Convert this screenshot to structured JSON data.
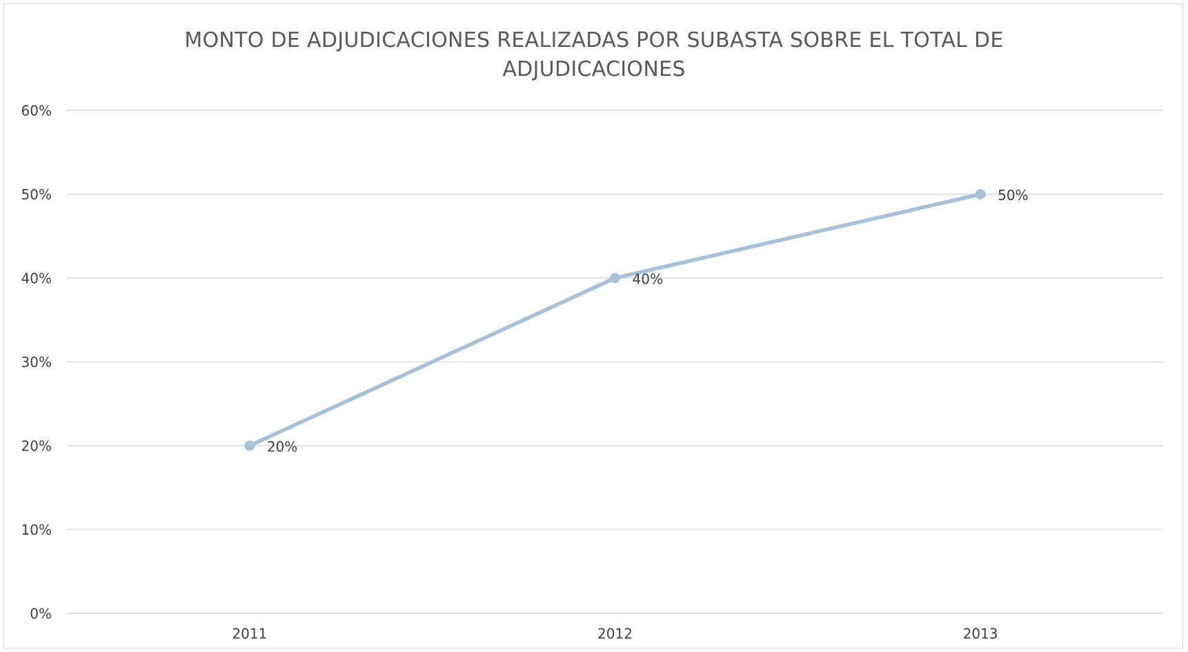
{
  "chart_data": {
    "type": "line",
    "title": "MONTO DE ADJUDICACIONES REALIZADAS POR SUBASTA SOBRE EL TOTAL DE ADJUDICACIONES",
    "categories": [
      "2011",
      "2012",
      "2013"
    ],
    "values": [
      20,
      40,
      50
    ],
    "value_labels": [
      "20%",
      "40%",
      "50%"
    ],
    "color": "#a6c1d9",
    "ylim": [
      0,
      60
    ],
    "yticks": [
      {
        "value": 0,
        "label": "0%"
      },
      {
        "value": 10,
        "label": "10%"
      },
      {
        "value": 20,
        "label": "20%"
      },
      {
        "value": 30,
        "label": "30%"
      },
      {
        "value": 40,
        "label": "40%"
      },
      {
        "value": 50,
        "label": "50%"
      },
      {
        "value": 60,
        "label": "60%"
      }
    ],
    "grid": true
  }
}
